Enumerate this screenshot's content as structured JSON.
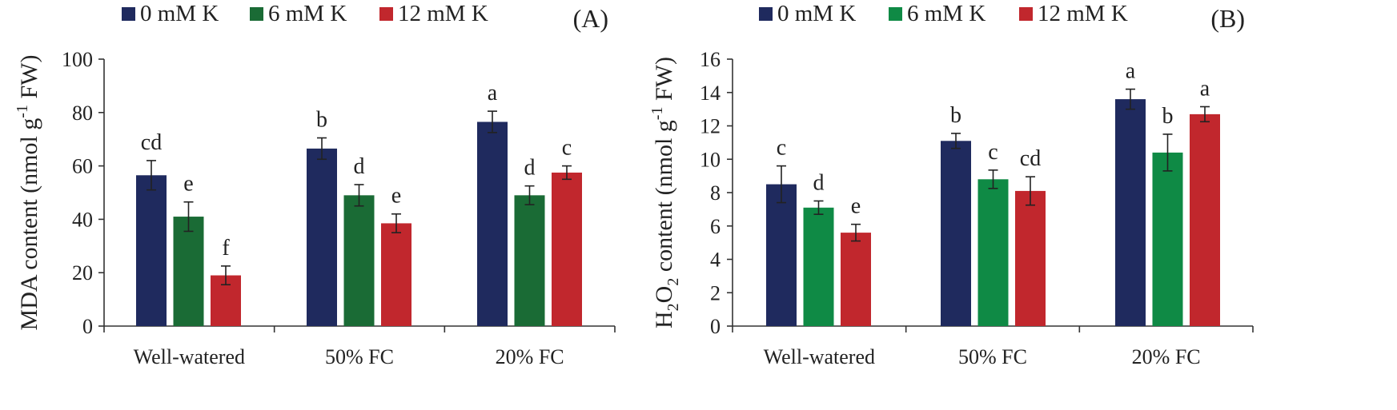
{
  "chart_data": [
    {
      "type": "bar",
      "panel_label": "(A)",
      "title": "",
      "xlabel": "",
      "ylabel": "MDA content (nmol g-1 FW)",
      "ylabel_parts": {
        "pre": "MDA content (nmol g",
        "sup": "-1",
        "post": " FW)"
      },
      "ylim": [
        0,
        100
      ],
      "yticks": [
        0,
        20,
        40,
        60,
        80,
        100
      ],
      "legend_position": "top",
      "categories": [
        "Well-watered",
        "50% FC",
        "20% FC"
      ],
      "series": [
        {
          "name": "0 mM K",
          "color": "#1f2a5e",
          "values": [
            56.5,
            66.5,
            76.5
          ],
          "errors": [
            5.5,
            4,
            4
          ],
          "letters": [
            "cd",
            "b",
            "a"
          ]
        },
        {
          "name": "6 mM K",
          "color": "#1a6b35",
          "values": [
            41,
            49,
            49
          ],
          "errors": [
            5.5,
            4,
            3.5
          ],
          "letters": [
            "e",
            "d",
            "d"
          ]
        },
        {
          "name": "12 mM K",
          "color": "#c1272d",
          "values": [
            19,
            38.5,
            57.5
          ],
          "errors": [
            3.5,
            3.5,
            2.5
          ],
          "letters": [
            "f",
            "e",
            "c"
          ]
        }
      ]
    },
    {
      "type": "bar",
      "panel_label": "(B)",
      "title": "",
      "xlabel": "",
      "ylabel": "H2O2 content (nmol g-1 FW)",
      "ylabel_parts": {
        "a": "H",
        "b": "2",
        "c": "O",
        "d": "2",
        "e": " content (nmol g",
        "sup": "-1",
        "post": " FW)"
      },
      "ylim": [
        0,
        16
      ],
      "yticks": [
        0,
        2,
        4,
        6,
        8,
        10,
        12,
        14,
        16
      ],
      "legend_position": "top",
      "categories": [
        "Well-watered",
        "50% FC",
        "20% FC"
      ],
      "series": [
        {
          "name": "0 mM K",
          "color": "#1f2a5e",
          "values": [
            8.5,
            11.1,
            13.6
          ],
          "errors": [
            1.1,
            0.45,
            0.6
          ],
          "letters": [
            "c",
            "b",
            "a"
          ]
        },
        {
          "name": "6 mM K",
          "color": "#0f8a45",
          "values": [
            7.1,
            8.8,
            10.4
          ],
          "errors": [
            0.4,
            0.55,
            1.1
          ],
          "letters": [
            "d",
            "c",
            "b"
          ]
        },
        {
          "name": "12 mM K",
          "color": "#c1272d",
          "values": [
            5.6,
            8.1,
            12.7
          ],
          "errors": [
            0.5,
            0.85,
            0.45
          ],
          "letters": [
            "e",
            "cd",
            "a"
          ]
        }
      ]
    }
  ]
}
